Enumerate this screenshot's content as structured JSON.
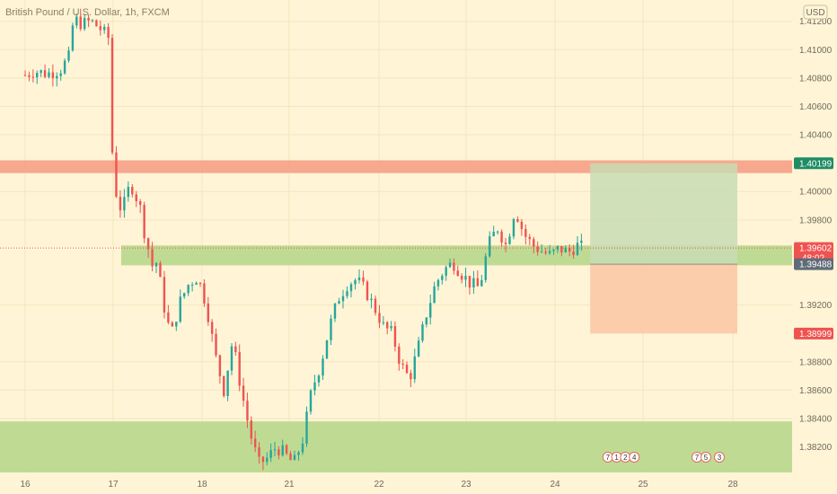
{
  "chart_data": {
    "type": "candlestick",
    "title": "British Pound / U.S. Dollar, 1h, FXCM",
    "currency": "USD",
    "yrange": [
      1.3802,
      1.4135
    ],
    "yticks": [
      1.412,
      1.41,
      1.408,
      1.406,
      1.404,
      1.4,
      1.398,
      1.392,
      1.388,
      1.386,
      1.384,
      1.382
    ],
    "ytick_labels": [
      "1.41200",
      "1.41000",
      "1.40800",
      "1.40600",
      "1.40400",
      "1.40000",
      "1.39800",
      "1.39200",
      "1.38800",
      "1.38600",
      "1.38400",
      "1.38200"
    ],
    "xticks": [
      {
        "label": "16",
        "day": 0
      },
      {
        "label": "17",
        "day": 1
      },
      {
        "label": "18",
        "day": 2
      },
      {
        "label": "21",
        "day": 3
      },
      {
        "label": "22",
        "day": 4
      },
      {
        "label": "23",
        "day": 5
      },
      {
        "label": "24",
        "day": 6
      },
      {
        "label": "25",
        "day": 7
      },
      {
        "label": "28",
        "day": 8
      }
    ],
    "close_path": [
      [
        0.0,
        1.4082
      ],
      [
        0.1,
        1.4085
      ],
      [
        0.25,
        1.4083
      ],
      [
        0.4,
        1.4086
      ],
      [
        0.5,
        1.4095
      ],
      [
        0.55,
        1.4122
      ],
      [
        0.65,
        1.4118
      ],
      [
        0.75,
        1.412
      ],
      [
        0.85,
        1.4115
      ],
      [
        0.95,
        1.4108
      ],
      [
        1.0,
        1.4008
      ],
      [
        1.05,
        1.3995
      ],
      [
        1.1,
        1.3985
      ],
      [
        1.15,
        1.3998
      ],
      [
        1.2,
        1.4005
      ],
      [
        1.3,
        1.399
      ],
      [
        1.35,
        1.3972
      ],
      [
        1.45,
        1.3945
      ],
      [
        1.5,
        1.3952
      ],
      [
        1.55,
        1.3925
      ],
      [
        1.65,
        1.3898
      ],
      [
        1.75,
        1.3922
      ],
      [
        1.85,
        1.3935
      ],
      [
        1.95,
        1.394
      ],
      [
        2.05,
        1.392
      ],
      [
        2.15,
        1.3885
      ],
      [
        2.25,
        1.386
      ],
      [
        2.35,
        1.3895
      ],
      [
        2.45,
        1.386
      ],
      [
        2.55,
        1.383
      ],
      [
        2.65,
        1.3808
      ],
      [
        2.75,
        1.3812
      ],
      [
        2.85,
        1.382
      ],
      [
        2.95,
        1.3815
      ],
      [
        3.05,
        1.3808
      ],
      [
        3.15,
        1.3825
      ],
      [
        3.25,
        1.386
      ],
      [
        3.35,
        1.3878
      ],
      [
        3.45,
        1.3905
      ],
      [
        3.55,
        1.3925
      ],
      [
        3.65,
        1.3935
      ],
      [
        3.75,
        1.3938
      ],
      [
        3.85,
        1.393
      ],
      [
        3.95,
        1.3918
      ],
      [
        4.05,
        1.3905
      ],
      [
        4.15,
        1.39
      ],
      [
        4.25,
        1.3878
      ],
      [
        4.35,
        1.3868
      ],
      [
        4.45,
        1.389
      ],
      [
        4.55,
        1.3915
      ],
      [
        4.65,
        1.3935
      ],
      [
        4.75,
        1.3945
      ],
      [
        4.85,
        1.395
      ],
      [
        4.95,
        1.3942
      ],
      [
        5.05,
        1.3935
      ],
      [
        5.15,
        1.3932
      ],
      [
        5.25,
        1.3962
      ],
      [
        5.35,
        1.3975
      ],
      [
        5.45,
        1.3962
      ],
      [
        5.55,
        1.3988
      ],
      [
        5.65,
        1.397
      ],
      [
        5.75,
        1.3962
      ],
      [
        5.85,
        1.3958
      ],
      [
        5.95,
        1.3955
      ],
      [
        6.05,
        1.396
      ],
      [
        6.15,
        1.3957
      ],
      [
        6.25,
        1.3962
      ],
      [
        6.33,
        1.396
      ]
    ],
    "zones": [
      {
        "name": "resistance",
        "y_low": 1.4013,
        "y_high": 1.4022,
        "color": "#f5a48a"
      },
      {
        "name": "demand-upper",
        "y_low": 1.3948,
        "y_high": 1.3962,
        "x_start": 1.09,
        "color": "#bcd98f"
      },
      {
        "name": "demand-lower",
        "y_low": 1.3802,
        "y_high": 1.3838,
        "color": "#bcd98f"
      }
    ],
    "trade": {
      "x_start": 6.4,
      "x_end": 8.05,
      "entry": 1.39488,
      "target": 1.40199,
      "stop": 1.38999,
      "profit_color": "#c8dcb3",
      "loss_color": "#fbc9a6"
    },
    "price_tags": [
      {
        "value": 1.40199,
        "label": "1.40199",
        "color": "#1e8c65"
      },
      {
        "value": 1.39602,
        "label": "1.39602",
        "sublabel": "48:02",
        "color": "#ef5350"
      },
      {
        "value": 1.39488,
        "label": "1.39488",
        "color": "#5f6b78"
      },
      {
        "value": 1.38999,
        "label": "1.38999",
        "color": "#ef5350"
      }
    ],
    "last_price_line": 1.39602,
    "event_labels": [
      {
        "day": 6.6,
        "text": "7"
      },
      {
        "day": 6.7,
        "text": "1"
      },
      {
        "day": 6.8,
        "text": "2"
      },
      {
        "day": 6.9,
        "text": "4"
      },
      {
        "day": 7.6,
        "text": "7"
      },
      {
        "day": 7.7,
        "text": "5"
      },
      {
        "day": 7.85,
        "text": "3"
      }
    ],
    "colors": {
      "up": "#26a69a",
      "down": "#ef5350",
      "grid": "#f3e6bf",
      "text": "#6f6a5c"
    }
  }
}
